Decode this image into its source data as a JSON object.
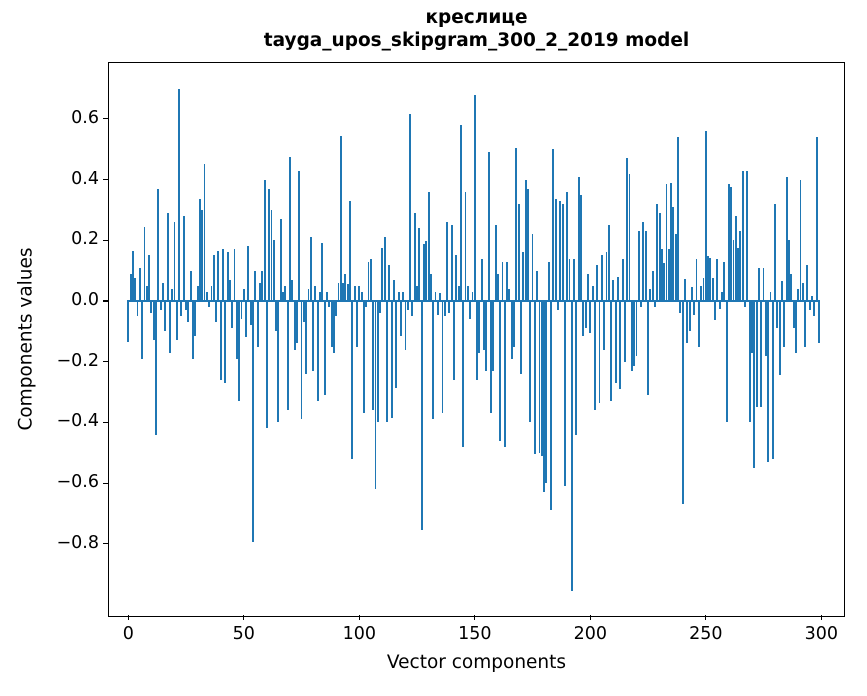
{
  "title_line1": "креслице",
  "title_line2": "tayga_upos_skipgram_300_2_2019 model",
  "xlabel": "Vector components",
  "ylabel": "Components values",
  "x_ticks": [
    {
      "label": "0",
      "value": 0
    },
    {
      "label": "50",
      "value": 50
    },
    {
      "label": "100",
      "value": 100
    },
    {
      "label": "150",
      "value": 150
    },
    {
      "label": "200",
      "value": 200
    },
    {
      "label": "250",
      "value": 250
    },
    {
      "label": "300",
      "value": 300
    }
  ],
  "y_ticks": [
    {
      "label": "0.6",
      "value": 0.6
    },
    {
      "label": "0.4",
      "value": 0.4
    },
    {
      "label": "0.2",
      "value": 0.2
    },
    {
      "label": "0.0",
      "value": 0.0
    },
    {
      "label": "−0.2",
      "value": -0.2
    },
    {
      "label": "−0.4",
      "value": -0.4
    },
    {
      "label": "−0.6",
      "value": -0.6
    },
    {
      "label": "−0.8",
      "value": -0.8
    }
  ],
  "chart_data": {
    "type": "bar",
    "title": "креслице — tayga_upos_skipgram_300_2_2019 model",
    "xlabel": "Vector components",
    "ylabel": "Components values",
    "bar_color": "#1f77b4",
    "xlim": [
      -8.35,
      310.7
    ],
    "ylim": [
      -1.0445,
      0.7842
    ],
    "x_start": 0,
    "values": [
      -0.135,
      0.09,
      0.165,
      0.075,
      -0.05,
      0.11,
      -0.19,
      0.245,
      0.05,
      0.15,
      -0.04,
      -0.13,
      -0.44,
      0.37,
      -0.03,
      0.06,
      -0.1,
      0.29,
      -0.17,
      0.04,
      0.26,
      -0.13,
      0.7,
      -0.05,
      0.28,
      -0.03,
      -0.07,
      0.1,
      -0.19,
      -0.115,
      0.05,
      0.335,
      0.3,
      0.45,
      0.03,
      -0.02,
      0.05,
      0.15,
      -0.07,
      0.165,
      -0.26,
      0.17,
      -0.27,
      0.16,
      0.07,
      -0.09,
      0.17,
      -0.19,
      -0.33,
      -0.06,
      0.04,
      -0.12,
      0.18,
      -0.08,
      -0.795,
      0.1,
      -0.15,
      0.06,
      0.1,
      0.4,
      -0.42,
      0.37,
      0.3,
      0.2,
      -0.1,
      -0.4,
      0.27,
      0.03,
      0.05,
      -0.36,
      0.475,
      0.07,
      -0.16,
      -0.14,
      0.43,
      -0.39,
      -0.07,
      -0.24,
      0.04,
      0.21,
      -0.23,
      0.05,
      -0.33,
      0.03,
      0.19,
      -0.31,
      0.03,
      -0.02,
      -0.15,
      -0.17,
      -0.05,
      0.06,
      0.545,
      0.06,
      0.09,
      0.055,
      0.33,
      -0.52,
      0.05,
      -0.15,
      0.05,
      0.03,
      -0.37,
      -0.02,
      0.13,
      0.14,
      -0.36,
      -0.62,
      -0.4,
      -0.04,
      0.175,
      0.21,
      -0.4,
      0.12,
      -0.385,
      0.07,
      -0.285,
      0.03,
      -0.115,
      0.03,
      -0.16,
      -0.03,
      0.615,
      -0.05,
      0.29,
      0.05,
      0.24,
      -0.755,
      0.187,
      0.198,
      0.36,
      0.09,
      -0.39,
      0.03,
      -0.045,
      0.025,
      -0.37,
      -0.05,
      0.26,
      -0.04,
      0.25,
      -0.26,
      0.15,
      0.05,
      0.58,
      -0.48,
      0.36,
      0.05,
      -0.06,
      0.03,
      0.68,
      -0.26,
      -0.17,
      0.14,
      -0.16,
      -0.23,
      0.49,
      -0.37,
      -0.23,
      0.25,
      0.09,
      -0.46,
      0.13,
      -0.48,
      0.13,
      0.04,
      -0.19,
      -0.15,
      0.505,
      0.32,
      -0.24,
      0.16,
      0.4,
      0.37,
      -0.4,
      0.22,
      -0.505,
      0.1,
      -0.5,
      -0.51,
      -0.63,
      -0.6,
      0.13,
      -0.69,
      0.5,
      0.335,
      -0.03,
      0.33,
      0.32,
      -0.61,
      0.36,
      0.14,
      -0.955,
      0.137,
      -0.44,
      0.41,
      0.35,
      -0.115,
      -0.09,
      0.09,
      -0.107,
      0.05,
      -0.36,
      0.12,
      -0.335,
      0.15,
      -0.16,
      0.16,
      0.25,
      -0.33,
      0.07,
      -0.27,
      0.08,
      -0.29,
      0.14,
      -0.2,
      0.47,
      0.42,
      -0.23,
      -0.215,
      -0.18,
      0.23,
      -0.02,
      0.26,
      0.23,
      -0.31,
      0.04,
      0.1,
      -0.02,
      0.32,
      0.29,
      0.17,
      0.126,
      0.385,
      0.17,
      0.39,
      0.31,
      0.22,
      0.54,
      -0.04,
      -0.67,
      0.073,
      -0.14,
      -0.1,
      0.046,
      -0.047,
      0.14,
      -0.15,
      0.05,
      0.075,
      0.56,
      0.148,
      0.142,
      0.075,
      -0.064,
      0.14,
      -0.027,
      0.03,
      0.13,
      -0.4,
      0.385,
      0.375,
      0.2,
      0.28,
      0.175,
      0.23,
      0.43,
      -0.02,
      0.43,
      -0.4,
      -0.17,
      -0.55,
      -0.35,
      0.11,
      -0.35,
      0.11,
      -0.18,
      -0.53,
      0.03,
      -0.52,
      0.32,
      -0.09,
      -0.245,
      0.066,
      -0.15,
      0.41,
      0.2,
      0.09,
      -0.09,
      -0.17,
      0.04,
      0.4,
      0.06,
      -0.15,
      0.12,
      -0.03,
      0.016,
      -0.05,
      0.54,
      -0.14
    ]
  }
}
